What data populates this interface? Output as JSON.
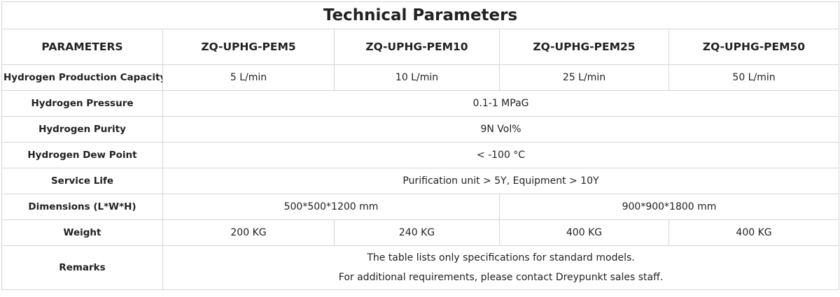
{
  "title": "Technical Parameters",
  "table": {
    "header": [
      "PARAMETERS",
      "ZQ-UPHG-PEM5",
      "ZQ-UPHG-PEM10",
      "ZQ-UPHG-PEM25",
      "ZQ-UPHG-PEM50"
    ],
    "rows": [
      [
        "Hydrogen Production Capacity",
        "5 L/min",
        "10 L/min",
        "25 L/min",
        "50 L/min"
      ],
      [
        "Hydrogen Pressure",
        "0.1-1 MPaG"
      ],
      [
        "Hydrogen Purity",
        "9N Vol%"
      ],
      [
        "Hydrogen Dew Point",
        "< -100 °C"
      ],
      [
        "Service Life",
        "Purification unit > 5Y, Equipment > 10Y"
      ],
      [
        "Dimensions (L*W*H)",
        "500*500*1200 mm",
        "900*900*1800 mm"
      ],
      [
        "Weight",
        "200 KG",
        "240 KG",
        "400 KG",
        "400 KG"
      ],
      [
        "Remarks",
        [
          "The table lists only specifications for standard models.",
          "For additional requirements, please contact Dreypunkt sales staff."
        ]
      ]
    ]
  }
}
